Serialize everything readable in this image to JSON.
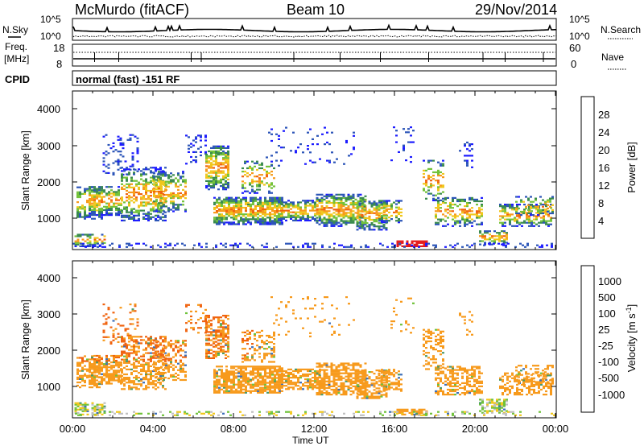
{
  "header": {
    "title_left": "McMurdo (fitACF)",
    "title_center": "Beam 10",
    "title_right": "29/Nov/2014"
  },
  "strip_noise": {
    "left_label": "N.Sky",
    "right_label": "N.Search",
    "tick_top": "10^5",
    "tick_bottom": "10^0"
  },
  "strip_freq": {
    "left_label_1": "Freq.",
    "left_label_2": "[MHz]",
    "right_label": "Nave",
    "left_tick_top": "18",
    "left_tick_bottom": "8",
    "right_tick_top": "60",
    "right_tick_bottom": "0"
  },
  "strip_cpid": {
    "label": "CPID",
    "text": "normal (fast) -151 RF"
  },
  "x_axis": {
    "label": "Time UT",
    "ticks": [
      "00:00",
      "04:00",
      "08:00",
      "12:00",
      "16:00",
      "20:00",
      "00:00"
    ]
  },
  "power_panel": {
    "ylabel": "Slant Range [km]",
    "yticks": [
      "1000",
      "2000",
      "3000",
      "4000"
    ],
    "colorbar_label": "Power [dB]",
    "colorbar_ticks": [
      "4",
      "8",
      "12",
      "16",
      "20",
      "24",
      "28"
    ],
    "colorbar_colors": [
      "#1c1cff",
      "#2c55b8",
      "#3a8a4e",
      "#73c23a",
      "#f0c71c",
      "#f79a1c",
      "#f0630f",
      "#e51717"
    ]
  },
  "velocity_panel": {
    "ylabel": "Slant Range [km]",
    "yticks": [
      "1000",
      "2000",
      "3000",
      "4000"
    ],
    "colorbar_label": "Velocity [m s",
    "colorbar_label_sup": "-1",
    "colorbar_label_end": "]",
    "colorbar_ticks": [
      "1000",
      "500",
      "100",
      "25",
      "-25",
      "-100",
      "-500",
      "-1000"
    ],
    "colorbar_colors": [
      "#2c3fb8",
      "#3d6fb8",
      "#4a9a6a",
      "#6fc23a",
      "#c0c0c0",
      "#f0c71c",
      "#f79a1c",
      "#f0630f",
      "#e51717"
    ]
  },
  "chart_data": {
    "type": "heatmap",
    "x_range_hours": [
      0,
      24
    ],
    "y_range_km": [
      180,
      4500
    ],
    "panels": [
      "Power [dB]",
      "Velocity [m s-1]"
    ]
  }
}
